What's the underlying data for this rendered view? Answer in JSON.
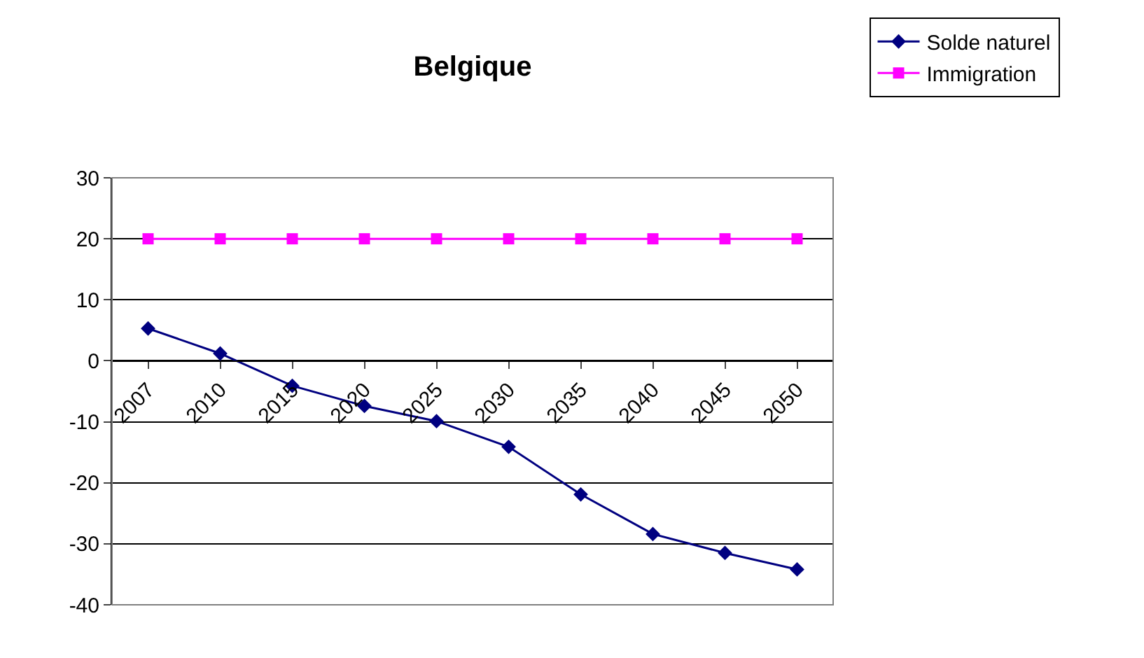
{
  "chart_data": {
    "type": "line",
    "title": "Belgique",
    "categories": [
      "2007",
      "2010",
      "2015",
      "2020",
      "2025",
      "2030",
      "2035",
      "2040",
      "2045",
      "2050"
    ],
    "series": [
      {
        "name": "Solde naturel",
        "color": "#000080",
        "marker": "diamond",
        "values": [
          5.3,
          1.2,
          -4.1,
          -7.4,
          -9.9,
          -14.1,
          -21.9,
          -28.4,
          -31.5,
          -34.2
        ]
      },
      {
        "name": "Immigration",
        "color": "#ff00ff",
        "marker": "square",
        "values": [
          20,
          20,
          20,
          20,
          20,
          20,
          20,
          20,
          20,
          20
        ]
      }
    ],
    "ylim": [
      -40,
      30
    ],
    "yticks": [
      -40,
      -30,
      -20,
      -10,
      0,
      10,
      20,
      30
    ],
    "grid": "y",
    "legend": "top right",
    "line_style": "solid"
  }
}
